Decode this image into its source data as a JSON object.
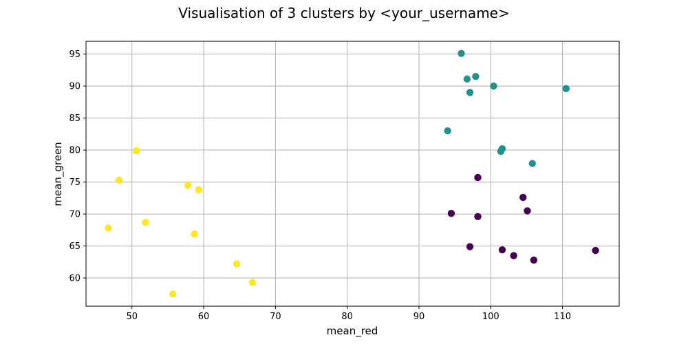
{
  "chart_data": {
    "type": "scatter",
    "title": "Visualisation of 3 clusters by <your_username>",
    "xlabel": "mean_red",
    "ylabel": "mean_green",
    "xlim": [
      43.6,
      117.9
    ],
    "ylim": [
      55.6,
      97.0
    ],
    "xticks": [
      50,
      60,
      70,
      80,
      90,
      100,
      110
    ],
    "yticks": [
      60,
      65,
      70,
      75,
      80,
      85,
      90,
      95
    ],
    "grid": true,
    "legend": "none",
    "series": [
      {
        "color": "#440154",
        "points": [
          {
            "x": 98.2,
            "y": 75.7
          },
          {
            "x": 104.5,
            "y": 72.6
          },
          {
            "x": 105.1,
            "y": 70.5
          },
          {
            "x": 94.5,
            "y": 70.1
          },
          {
            "x": 98.2,
            "y": 69.6
          },
          {
            "x": 97.1,
            "y": 64.9
          },
          {
            "x": 101.6,
            "y": 64.4
          },
          {
            "x": 103.2,
            "y": 63.5
          },
          {
            "x": 106.0,
            "y": 62.8
          },
          {
            "x": 114.6,
            "y": 64.3
          }
        ]
      },
      {
        "color": "#21918c",
        "points": [
          {
            "x": 95.9,
            "y": 95.1
          },
          {
            "x": 97.9,
            "y": 91.5
          },
          {
            "x": 96.7,
            "y": 91.1
          },
          {
            "x": 100.4,
            "y": 90.0
          },
          {
            "x": 97.1,
            "y": 89.0
          },
          {
            "x": 110.5,
            "y": 89.6
          },
          {
            "x": 94.0,
            "y": 83.0
          },
          {
            "x": 101.6,
            "y": 80.2
          },
          {
            "x": 101.4,
            "y": 79.8
          },
          {
            "x": 105.8,
            "y": 77.9
          }
        ]
      },
      {
        "color": "#fde725",
        "points": [
          {
            "x": 50.6,
            "y": 79.9
          },
          {
            "x": 48.2,
            "y": 75.3
          },
          {
            "x": 57.8,
            "y": 74.5
          },
          {
            "x": 59.3,
            "y": 73.8
          },
          {
            "x": 51.9,
            "y": 68.7
          },
          {
            "x": 46.7,
            "y": 67.8
          },
          {
            "x": 58.7,
            "y": 66.9
          },
          {
            "x": 64.6,
            "y": 62.2
          },
          {
            "x": 66.8,
            "y": 59.3
          },
          {
            "x": 55.7,
            "y": 57.5
          }
        ]
      }
    ]
  }
}
